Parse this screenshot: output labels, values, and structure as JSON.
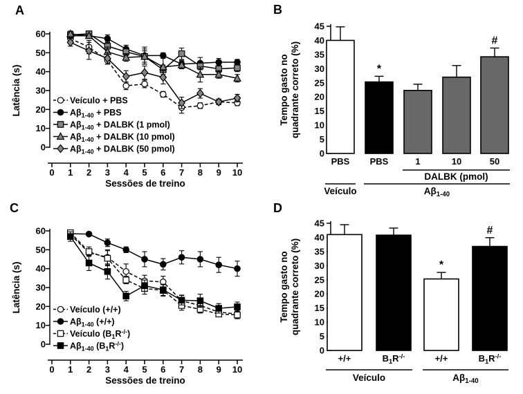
{
  "panels": [
    {
      "letter": "A"
    },
    {
      "letter": "B"
    },
    {
      "letter": "C"
    },
    {
      "letter": "D"
    }
  ],
  "colors": {
    "background": "#ffffff",
    "axis": "#000000",
    "black": "#000000",
    "white": "#ffffff",
    "gray_marker": "#858585",
    "gray_bar": "#686868"
  },
  "chart_data": [
    {
      "panel": "A",
      "type": "line",
      "xlabel": "Sessões de treino",
      "ylabel": "Latência (s)",
      "xlim": [
        0,
        10
      ],
      "ylim": [
        0,
        60
      ],
      "xticks": [
        0,
        1,
        2,
        3,
        4,
        5,
        6,
        7,
        8,
        9,
        10
      ],
      "yticks": [
        0,
        10,
        20,
        30,
        40,
        50,
        60
      ],
      "grid": false,
      "legend_position": "lower-left",
      "x": [
        1,
        2,
        3,
        4,
        5,
        6,
        7,
        8,
        9,
        10
      ],
      "series": [
        {
          "name": "Veículo + PBS",
          "marker": "circle",
          "fill": "open",
          "line": "dashed",
          "values": [
            57.5,
            53,
            46,
            32.5,
            33.5,
            28,
            21,
            22,
            24,
            23.5
          ],
          "errors": [
            2,
            3.5,
            2,
            2,
            2,
            1.5,
            3,
            1.5,
            1.5,
            1.5
          ]
        },
        {
          "name": "Aβ~1-40~ + PBS",
          "marker": "circle",
          "fill": "black",
          "line": "solid",
          "values": [
            59,
            59,
            57.5,
            52,
            48.5,
            48.5,
            44,
            44.5,
            45,
            45
          ],
          "errors": [
            1.5,
            1,
            2,
            2,
            4.5,
            1.5,
            2,
            3,
            2,
            1.5
          ]
        },
        {
          "name": "Aβ~1-40~ + DALBK (1 pmol)",
          "marker": "square",
          "fill": "gray",
          "line": "solid",
          "values": [
            59.5,
            60,
            53.5,
            50.5,
            48,
            41,
            49.5,
            43,
            41.5,
            42
          ],
          "errors": [
            1,
            1.5,
            2.5,
            2,
            3,
            2.5,
            3,
            2,
            2,
            2
          ]
        },
        {
          "name": "Aβ~1-40~ + DALBK (10 pmol)",
          "marker": "triangle",
          "fill": "gray",
          "line": "solid",
          "values": [
            60,
            59,
            50.5,
            47.5,
            48,
            42.5,
            43.5,
            38.5,
            38.5,
            36.5
          ],
          "errors": [
            1.5,
            1,
            2.5,
            2,
            4,
            6,
            2,
            4,
            2,
            2
          ]
        },
        {
          "name": "Aβ~1-40~ + DALBK (50 pmol)",
          "marker": "diamond",
          "fill": "gray",
          "line": "solid",
          "values": [
            55.5,
            51,
            47,
            37.5,
            39.5,
            37,
            23.5,
            28.5,
            24,
            26
          ],
          "errors": [
            2,
            4.5,
            3,
            3,
            3.5,
            3.5,
            3,
            2.5,
            1.5,
            2
          ]
        }
      ]
    },
    {
      "panel": "B",
      "type": "bar",
      "ylabel_lines": [
        "Tempo gasto no",
        "quadrante correto (%)"
      ],
      "ylim": [
        0,
        45
      ],
      "yticks": [
        0,
        5,
        10,
        15,
        20,
        25,
        30,
        35,
        40,
        45
      ],
      "grid": false,
      "bars": [
        {
          "label": "PBS",
          "value": 40,
          "error": 4.8,
          "fill": "white",
          "annotation": ""
        },
        {
          "label": "PBS",
          "value": 25.3,
          "error": 2,
          "fill": "black",
          "annotation": "*"
        },
        {
          "label": "1",
          "value": 22.3,
          "error": 2.2,
          "fill": "gray",
          "annotation": ""
        },
        {
          "label": "10",
          "value": 27,
          "error": 4.1,
          "fill": "gray",
          "annotation": ""
        },
        {
          "label": "50",
          "value": 34.2,
          "error": 3.1,
          "fill": "gray",
          "annotation": "#"
        }
      ],
      "groups": [
        {
          "text": "DALBK (pmol)",
          "from": 2,
          "to": 4,
          "row": 1
        },
        {
          "text": "Veículo",
          "from": 0,
          "to": 0,
          "row": 2
        },
        {
          "text": "Aβ~1-40~",
          "from": 1,
          "to": 4,
          "row": 2
        }
      ]
    },
    {
      "panel": "C",
      "type": "line",
      "xlabel": "Sessões de treino",
      "ylabel": "Latência (s)",
      "xlim": [
        0,
        10
      ],
      "ylim": [
        0,
        60
      ],
      "xticks": [
        0,
        1,
        2,
        3,
        4,
        5,
        6,
        7,
        8,
        9,
        10
      ],
      "yticks": [
        0,
        10,
        20,
        30,
        40,
        50,
        60
      ],
      "grid": false,
      "legend_position": "lower-left",
      "x": [
        1,
        2,
        3,
        4,
        5,
        6,
        7,
        8,
        9,
        10
      ],
      "series": [
        {
          "name": "Veículo (+/+)",
          "marker": "circle",
          "fill": "open",
          "line": "dashed",
          "values": [
            58,
            48.5,
            46,
            38.5,
            33.5,
            33,
            23,
            20.5,
            17,
            16
          ],
          "errors": [
            2,
            2,
            4,
            4,
            3,
            3,
            3,
            2,
            2,
            2
          ]
        },
        {
          "name": "Aβ~1-40~ (+/+)",
          "marker": "circle",
          "fill": "black",
          "line": "solid",
          "values": [
            58.5,
            58.3,
            53.7,
            50,
            45,
            42.3,
            46,
            45,
            42,
            40
          ],
          "errors": [
            1.5,
            1,
            2,
            1.5,
            4,
            3,
            3.5,
            4,
            4,
            4
          ]
        },
        {
          "name": "Veículo (B~1~R^-/-^)",
          "marker": "square",
          "fill": "open",
          "line": "dashed",
          "values": [
            59,
            49,
            45.5,
            34,
            29.5,
            28.5,
            20.5,
            18.5,
            16,
            15.5
          ],
          "errors": [
            1.5,
            2.5,
            4,
            2,
            3,
            3,
            2.5,
            2,
            1.5,
            2
          ]
        },
        {
          "name": "Aβ~1-40~ (B~1~R^-/-^)",
          "marker": "square",
          "fill": "black",
          "line": "solid",
          "values": [
            57,
            43,
            38.5,
            25.5,
            31,
            28.8,
            23.3,
            23,
            19,
            19.8
          ],
          "errors": [
            2.5,
            4,
            4,
            2.5,
            3,
            3,
            2.5,
            3.5,
            2.5,
            2.5
          ]
        }
      ]
    },
    {
      "panel": "D",
      "type": "bar",
      "ylabel_lines": [
        "Tempo gasto no",
        "quadrante correto (%)"
      ],
      "ylim": [
        0,
        45
      ],
      "yticks": [
        0,
        5,
        10,
        15,
        20,
        25,
        30,
        35,
        40,
        45
      ],
      "grid": false,
      "bars": [
        {
          "label": "+/+",
          "value": 41,
          "error": 3.5,
          "fill": "white",
          "annotation": ""
        },
        {
          "label": "B~1~R^-/-^",
          "value": 40.8,
          "error": 2.5,
          "fill": "black",
          "annotation": ""
        },
        {
          "label": "+/+",
          "value": 25.3,
          "error": 2.3,
          "fill": "white",
          "annotation": "*"
        },
        {
          "label": "B~1~R^-/-^",
          "value": 36.8,
          "error": 3.1,
          "fill": "black",
          "annotation": "#"
        }
      ],
      "groups": [
        {
          "text": "Veículo",
          "from": 0,
          "to": 1,
          "row": 2
        },
        {
          "text": "Aβ~1-40~",
          "from": 2,
          "to": 3,
          "row": 2
        }
      ]
    }
  ]
}
